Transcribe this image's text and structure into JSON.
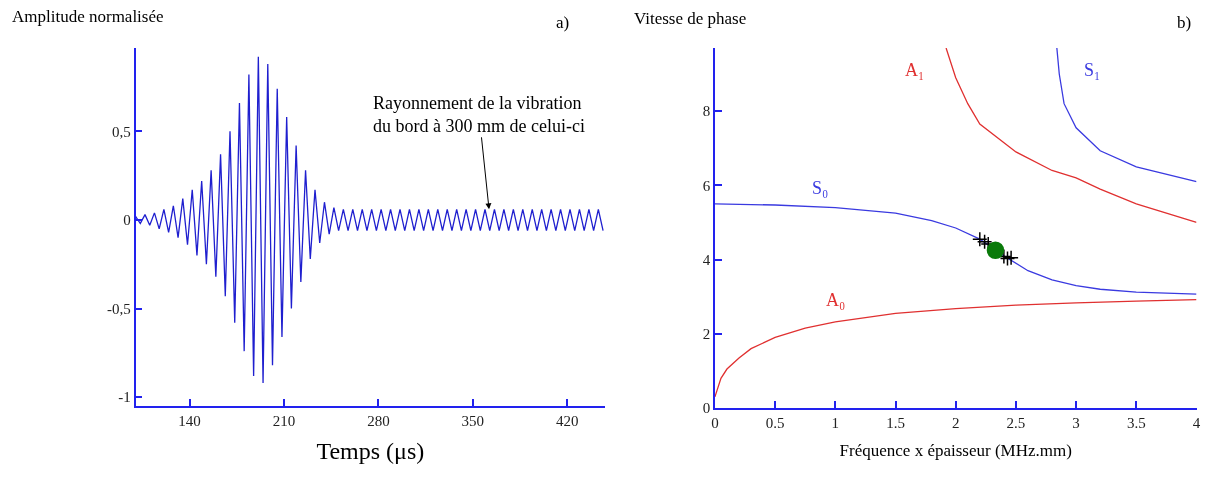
{
  "chart_data": [
    {
      "type": "line",
      "ylabel": "Amplitude normalisée",
      "xlabel": "Temps (μs)",
      "xlim": [
        100,
        448
      ],
      "xticks": [
        140,
        210,
        280,
        350,
        420
      ],
      "ylim": [
        -1.05,
        0.97
      ],
      "yticks": [
        {
          "value": -1,
          "label": "-1"
        },
        {
          "value": -0.5,
          "label": "-0,5"
        },
        {
          "value": 0,
          "label": "0"
        },
        {
          "value": 0.5,
          "label": "0,5"
        }
      ],
      "annotations": [
        {
          "text": "Rayonnement de la vibration\ndu bord à 300 mm de celui-ci",
          "x": 362,
          "y": 0.06
        },
        "a)"
      ],
      "series": [
        {
          "color": "#1f1fcf",
          "x": [
            100,
            103.5,
            107,
            110.5,
            114,
            117.5,
            121,
            124.5,
            128,
            131.5,
            135,
            138.5,
            142,
            145.5,
            149,
            152.5,
            156,
            159.5,
            163,
            166.5,
            170,
            173.5,
            177,
            180.5,
            184,
            187.5,
            191,
            194.5,
            198,
            201.5,
            205,
            208.5,
            212,
            215.5,
            219,
            222.5,
            226,
            229.5,
            233,
            236.5,
            240,
            243.5,
            247,
            250.5,
            254,
            257.5,
            261,
            264.5,
            268,
            271.5,
            275,
            278.5,
            282,
            285.5,
            289,
            292.5,
            296,
            299.5,
            303,
            306.5,
            310,
            313.5,
            317,
            320.5,
            324,
            327.5,
            331,
            334.5,
            338,
            341.5,
            345,
            348.5,
            352,
            355.5,
            359,
            362.5,
            366,
            369.5,
            373,
            376.5,
            380,
            383.5,
            387,
            390.5,
            394,
            397.5,
            401,
            404.5,
            408,
            411.5,
            415,
            418.5,
            422,
            425.5,
            429,
            432.5,
            436,
            439.5,
            443,
            446.5
          ],
          "values": [
            0.02,
            -0.02,
            0.03,
            -0.03,
            0.04,
            -0.05,
            0.06,
            -0.07,
            0.08,
            -0.1,
            0.12,
            -0.14,
            0.17,
            -0.2,
            0.22,
            -0.25,
            0.28,
            -0.32,
            0.37,
            -0.43,
            0.5,
            -0.58,
            0.66,
            -0.74,
            0.82,
            -0.88,
            0.92,
            -0.92,
            0.88,
            -0.82,
            0.74,
            -0.66,
            0.58,
            -0.5,
            0.42,
            -0.35,
            0.28,
            -0.22,
            0.17,
            -0.13,
            0.1,
            -0.08,
            0.07,
            -0.06,
            0.06,
            -0.06,
            0.06,
            -0.06,
            0.06,
            -0.06,
            0.06,
            -0.06,
            0.06,
            -0.06,
            0.06,
            -0.06,
            0.06,
            -0.06,
            0.06,
            -0.06,
            0.06,
            -0.06,
            0.06,
            -0.06,
            0.06,
            -0.06,
            0.06,
            -0.06,
            0.06,
            -0.06,
            0.06,
            -0.06,
            0.06,
            -0.06,
            0.06,
            -0.06,
            0.06,
            -0.06,
            0.06,
            -0.06,
            0.06,
            -0.06,
            0.06,
            -0.06,
            0.06,
            -0.06,
            0.06,
            -0.06,
            0.06,
            -0.06,
            0.06,
            -0.06,
            0.06,
            -0.06,
            0.06,
            -0.06,
            0.06,
            -0.06,
            0.06,
            -0.06
          ]
        }
      ]
    },
    {
      "type": "line",
      "ylabel": "Vitesse de phase",
      "xlabel": "Fréquence x épaisseur (MHz.mm)",
      "xlim": [
        0,
        4
      ],
      "xticks": [
        0,
        0.5,
        1,
        1.5,
        2,
        2.5,
        3,
        3.5,
        4
      ],
      "ylim": [
        0,
        9.7
      ],
      "yticks": [
        0,
        2,
        4,
        6,
        8
      ],
      "annotations": [
        "b)"
      ],
      "series": [
        {
          "name": "A₀",
          "color": "#e03030",
          "x": [
            0,
            0.05,
            0.1,
            0.2,
            0.3,
            0.5,
            0.75,
            1,
            1.5,
            2,
            2.5,
            3,
            3.5,
            4
          ],
          "values": [
            0.3,
            0.8,
            1.05,
            1.35,
            1.6,
            1.9,
            2.15,
            2.32,
            2.55,
            2.68,
            2.77,
            2.83,
            2.88,
            2.92
          ]
        },
        {
          "name": "S₀",
          "color": "#3a3ae0",
          "x": [
            0,
            0.5,
            1,
            1.5,
            1.8,
            2,
            2.2,
            2.4,
            2.6,
            2.8,
            3,
            3.2,
            3.5,
            4
          ],
          "values": [
            5.5,
            5.47,
            5.4,
            5.25,
            5.05,
            4.85,
            4.55,
            4.1,
            3.7,
            3.45,
            3.3,
            3.2,
            3.12,
            3.07
          ]
        },
        {
          "name": "A₁",
          "color": "#e03030",
          "x": [
            1.92,
            2,
            2.1,
            2.2,
            2.5,
            2.8,
            3,
            3.2,
            3.5,
            4
          ],
          "values": [
            9.7,
            8.9,
            8.2,
            7.65,
            6.9,
            6.4,
            6.2,
            5.9,
            5.5,
            5.0
          ]
        },
        {
          "name": "S₁",
          "color": "#3a3ae0",
          "x": [
            2.84,
            2.86,
            2.9,
            3,
            3.2,
            3.5,
            4
          ],
          "values": [
            9.7,
            9.0,
            8.2,
            7.55,
            6.93,
            6.5,
            6.1
          ]
        },
        {
          "type": "scatter",
          "marker": "cross",
          "color": "#000000",
          "x": [
            2.2,
            2.24,
            2.27,
            2.4,
            2.43,
            2.46
          ],
          "values": [
            4.55,
            4.48,
            4.42,
            4.08,
            4.03,
            4.05
          ]
        },
        {
          "type": "scatter",
          "marker": "circle",
          "color": "#0a7a0a",
          "x": [
            2.33
          ],
          "values": [
            4.25
          ]
        }
      ]
    }
  ]
}
